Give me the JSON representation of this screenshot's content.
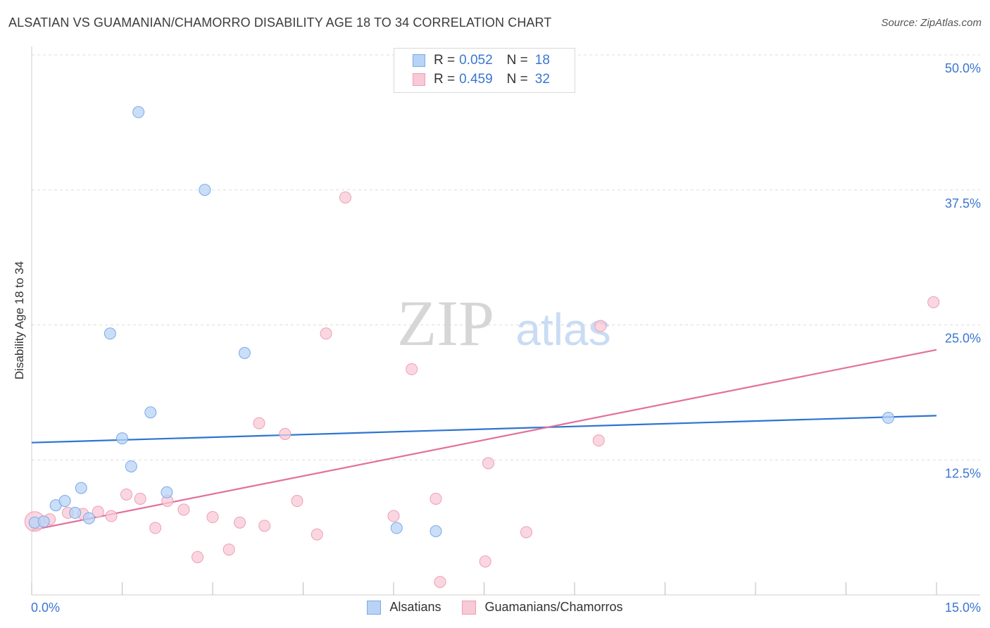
{
  "title": "ALSATIAN VS GUAMANIAN/CHAMORRO DISABILITY AGE 18 TO 34 CORRELATION CHART",
  "source": "Source: ZipAtlas.com",
  "watermark": {
    "zip": "ZIP",
    "atlas": "atlas"
  },
  "colors": {
    "alsatians_fill": "#b8d3f5",
    "alsatians_stroke": "#7aaae8",
    "alsatians_line": "#2e74d0",
    "guam_fill": "#f8c9d6",
    "guam_stroke": "#ee9db5",
    "guam_line": "#e3709a",
    "axis_label": "#3a76d1",
    "grid": "#dddddd"
  },
  "legend_top": {
    "rows": [
      {
        "r_label": "R =",
        "r_value": "0.052",
        "n_label": "N =",
        "n_value": "18"
      },
      {
        "r_label": "R =",
        "r_value": "0.459",
        "n_label": "N =",
        "n_value": "32"
      }
    ]
  },
  "legend_bottom": {
    "items": [
      "Alsatians",
      "Guamanians/Chamorros"
    ]
  },
  "chart_data": {
    "type": "scatter",
    "title": "ALSATIAN VS GUAMANIAN/CHAMORRO DISABILITY AGE 18 TO 34 CORRELATION CHART",
    "xlabel": "",
    "ylabel": "Disability Age 18 to 34",
    "xlim": [
      0,
      15
    ],
    "ylim": [
      0,
      50
    ],
    "x_tick_labels": [
      "0.0%",
      "15.0%"
    ],
    "y_tick_labels": [
      "12.5%",
      "25.0%",
      "37.5%",
      "50.0%"
    ],
    "y_ticks": [
      12.5,
      25.0,
      37.5,
      50.0
    ],
    "x_minor_ticks": [
      0,
      1.5,
      3,
      4.5,
      6,
      7.5,
      9,
      10.5,
      12,
      13.5,
      15
    ],
    "grid": true,
    "legend_position": "top-center",
    "series": [
      {
        "name": "Alsatians",
        "r": 0.052,
        "n": 18,
        "trend": [
          [
            0,
            14.1
          ],
          [
            15,
            16.6
          ]
        ],
        "points": [
          [
            0.05,
            6.7
          ],
          [
            0.2,
            6.8
          ],
          [
            0.4,
            8.3
          ],
          [
            0.55,
            8.7
          ],
          [
            0.72,
            7.6
          ],
          [
            0.82,
            9.9
          ],
          [
            0.95,
            7.1
          ],
          [
            1.3,
            24.2
          ],
          [
            1.5,
            14.5
          ],
          [
            1.65,
            11.9
          ],
          [
            1.77,
            44.7
          ],
          [
            1.97,
            16.9
          ],
          [
            2.24,
            9.5
          ],
          [
            2.87,
            37.5
          ],
          [
            3.53,
            22.4
          ],
          [
            6.05,
            6.2
          ],
          [
            6.7,
            5.9
          ],
          [
            14.2,
            16.4
          ]
        ]
      },
      {
        "name": "Guamanians/Chamorros",
        "r": 0.459,
        "n": 32,
        "trend": [
          [
            0,
            6.0
          ],
          [
            15,
            22.7
          ]
        ],
        "points": [
          [
            0.05,
            6.8
          ],
          [
            0.3,
            7.0
          ],
          [
            0.6,
            7.6
          ],
          [
            0.85,
            7.5
          ],
          [
            1.1,
            7.7
          ],
          [
            1.32,
            7.3
          ],
          [
            1.57,
            9.3
          ],
          [
            1.8,
            8.9
          ],
          [
            2.05,
            6.2
          ],
          [
            2.25,
            8.7
          ],
          [
            2.52,
            7.9
          ],
          [
            2.75,
            3.5
          ],
          [
            3.0,
            7.2
          ],
          [
            3.27,
            4.2
          ],
          [
            3.45,
            6.7
          ],
          [
            3.77,
            15.9
          ],
          [
            3.86,
            6.4
          ],
          [
            4.2,
            14.9
          ],
          [
            4.4,
            8.7
          ],
          [
            4.73,
            5.6
          ],
          [
            4.88,
            24.2
          ],
          [
            5.2,
            36.8
          ],
          [
            6.0,
            7.3
          ],
          [
            6.3,
            20.9
          ],
          [
            6.7,
            8.9
          ],
          [
            6.77,
            1.2
          ],
          [
            7.52,
            3.1
          ],
          [
            7.57,
            12.2
          ],
          [
            8.2,
            5.8
          ],
          [
            9.4,
            14.3
          ],
          [
            9.43,
            24.9
          ],
          [
            14.95,
            27.1
          ]
        ]
      }
    ]
  }
}
